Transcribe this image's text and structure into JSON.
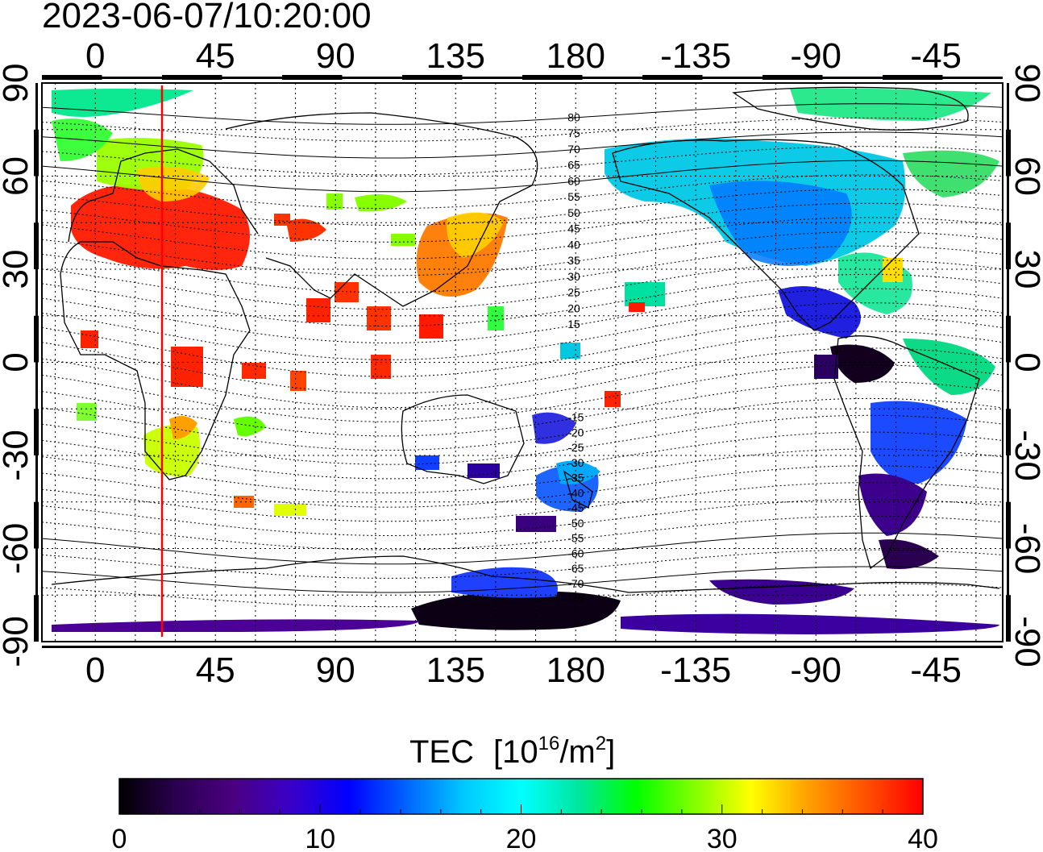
{
  "title": "2023-06-07/10:20:00",
  "quantity_label": "TEC",
  "unit_prefix": "[10",
  "unit_exp": "16",
  "unit_mid": "/m",
  "unit_exp2": "2",
  "unit_suffix": "]",
  "lon_ticks": [
    "0",
    "45",
    "90",
    "135",
    "180",
    "-135",
    "-90",
    "-45"
  ],
  "lat_left_ticks": [
    "90",
    "60",
    "30",
    "0",
    "-30",
    "-60",
    "-90"
  ],
  "lat_right_ticks": [
    "90",
    "60",
    "30",
    "0",
    "-30",
    "-60",
    "-90"
  ],
  "magnetic_labels_north": [
    "80",
    "75",
    "70",
    "65",
    "60",
    "55",
    "50",
    "45",
    "40",
    "35",
    "30",
    "25",
    "20",
    "15"
  ],
  "magnetic_labels_south": [
    "-15",
    "-20",
    "-25",
    "-30",
    "-35",
    "-40",
    "-45",
    "-50",
    "-55",
    "-60",
    "-65",
    "-70",
    "-75"
  ],
  "colorbar": {
    "min": 0,
    "max": 40,
    "tick_labels": [
      "0",
      "10",
      "20",
      "30",
      "40"
    ],
    "stops": [
      "#000000",
      "#2a0050",
      "#4b0082",
      "#3a00c8",
      "#0000ff",
      "#0064ff",
      "#00c8ff",
      "#00ffff",
      "#00e6a0",
      "#00ff00",
      "#80ff00",
      "#ffff00",
      "#ffa000",
      "#ff5000",
      "#ff0000"
    ]
  },
  "chart_data": {
    "type": "heatmap",
    "title": "2023-06-07/10:20:00",
    "xlabel": "",
    "ylabel": "",
    "xlim": [
      -20,
      340
    ],
    "ylim": [
      -90,
      90
    ],
    "terminator_lon": 25,
    "colorscale_range": [
      0,
      40
    ]
  },
  "colors": {
    "terminator": "#ff0000",
    "frame": "#000000",
    "grid": "#000000"
  }
}
